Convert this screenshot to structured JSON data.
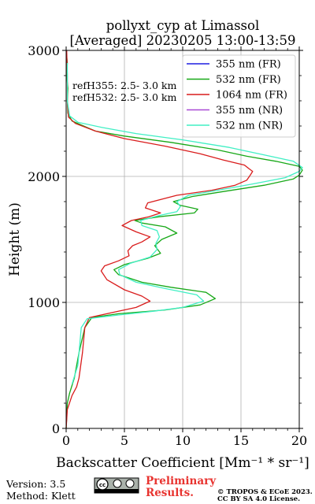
{
  "chart_data": {
    "type": "line",
    "title": "pollyxt_cyp at Limassol",
    "subtitle": "[Averaged] 20230205 13:00-13:59",
    "xlabel": "Backscatter Coefficient [Mm⁻¹ * sr⁻¹]",
    "ylabel": "Height (m)",
    "xlim": [
      0,
      20
    ],
    "ylim": [
      0,
      3000
    ],
    "xticks": [
      0,
      5,
      10,
      15,
      20
    ],
    "yticks": [
      0,
      1000,
      2000,
      3000
    ],
    "xtick_labels": [
      "0",
      "5",
      "10",
      "15",
      "20"
    ],
    "ytick_labels": [
      "0",
      "1000",
      "2000",
      "3000"
    ],
    "grid": true,
    "legend_position": "top-right",
    "annotations": [
      "refH355:  2.5- 3.0 km",
      "refH532:  2.5- 3.0 km"
    ],
    "series": [
      {
        "name": "355 nm (FR)",
        "color": "#1f1fe0",
        "points": []
      },
      {
        "name": "532 nm (FR)",
        "color": "#17a817",
        "points": [
          [
            0,
            0
          ],
          [
            0.1,
            200
          ],
          [
            0.3,
            280
          ],
          [
            0.7,
            400
          ],
          [
            1.1,
            600
          ],
          [
            1.6,
            800
          ],
          [
            2.2,
            880
          ],
          [
            4.5,
            910
          ],
          [
            8.5,
            940
          ],
          [
            11.5,
            980
          ],
          [
            12.8,
            1030
          ],
          [
            12,
            1080
          ],
          [
            9,
            1120
          ],
          [
            6.5,
            1160
          ],
          [
            4.5,
            1220
          ],
          [
            4.1,
            1260
          ],
          [
            5,
            1300
          ],
          [
            7,
            1350
          ],
          [
            8.1,
            1390
          ],
          [
            7.6,
            1450
          ],
          [
            8.2,
            1500
          ],
          [
            9.5,
            1550
          ],
          [
            8.5,
            1600
          ],
          [
            6.5,
            1630
          ],
          [
            5.9,
            1650
          ],
          [
            8,
            1680
          ],
          [
            11,
            1710
          ],
          [
            11.3,
            1740
          ],
          [
            9.8,
            1770
          ],
          [
            9.2,
            1800
          ],
          [
            10.8,
            1840
          ],
          [
            13.5,
            1880
          ],
          [
            17,
            1930
          ],
          [
            19.5,
            1980
          ],
          [
            20,
            2010
          ],
          [
            20.5,
            2050
          ],
          [
            20,
            2080
          ],
          [
            18,
            2120
          ],
          [
            15.5,
            2160
          ],
          [
            13,
            2210
          ],
          [
            9,
            2270
          ],
          [
            5,
            2320
          ],
          [
            2.5,
            2360
          ],
          [
            0.5,
            2440
          ],
          [
            0.15,
            2500
          ],
          [
            0.1,
            2600
          ],
          [
            0.15,
            2700
          ],
          [
            0.05,
            2800
          ],
          [
            0.1,
            2900
          ],
          [
            0,
            3000
          ]
        ]
      },
      {
        "name": "1064 nm (FR)",
        "color": "#d91c1c",
        "points": [
          [
            0,
            0
          ],
          [
            0.1,
            150
          ],
          [
            0.5,
            260
          ],
          [
            0.9,
            330
          ],
          [
            1.1,
            400
          ],
          [
            1.4,
            600
          ],
          [
            1.6,
            800
          ],
          [
            2,
            880
          ],
          [
            4,
            920
          ],
          [
            6,
            960
          ],
          [
            7.2,
            1010
          ],
          [
            6.5,
            1050
          ],
          [
            5,
            1100
          ],
          [
            3.5,
            1180
          ],
          [
            3,
            1250
          ],
          [
            3.3,
            1290
          ],
          [
            4.5,
            1330
          ],
          [
            5.4,
            1370
          ],
          [
            5.3,
            1410
          ],
          [
            5.7,
            1450
          ],
          [
            6.5,
            1480
          ],
          [
            7.2,
            1520
          ],
          [
            6,
            1560
          ],
          [
            4.8,
            1610
          ],
          [
            5.6,
            1650
          ],
          [
            7.1,
            1680
          ],
          [
            8.1,
            1710
          ],
          [
            6.8,
            1750
          ],
          [
            7,
            1790
          ],
          [
            9.5,
            1850
          ],
          [
            12.5,
            1890
          ],
          [
            14.5,
            1930
          ],
          [
            15.5,
            1970
          ],
          [
            15.8,
            2010
          ],
          [
            16,
            2040
          ],
          [
            15.7,
            2060
          ],
          [
            15.3,
            2090
          ],
          [
            13.5,
            2130
          ],
          [
            11.5,
            2180
          ],
          [
            8.5,
            2240
          ],
          [
            5,
            2300
          ],
          [
            2.5,
            2360
          ],
          [
            0.8,
            2420
          ],
          [
            0.2,
            2470
          ],
          [
            0.1,
            2600
          ],
          [
            0.1,
            2800
          ],
          [
            0.05,
            3000
          ]
        ]
      },
      {
        "name": "355 nm (NR)",
        "color": "#a94ad6",
        "points": []
      },
      {
        "name": "532 nm (NR)",
        "color": "#40efc4",
        "points": [
          [
            0.5,
            350
          ],
          [
            1,
            500
          ],
          [
            1.1,
            600
          ],
          [
            1.3,
            800
          ],
          [
            1.8,
            870
          ],
          [
            4.5,
            900
          ],
          [
            7.5,
            930
          ],
          [
            10,
            960
          ],
          [
            11.8,
            1010
          ],
          [
            11.2,
            1060
          ],
          [
            8.5,
            1110
          ],
          [
            6,
            1160
          ],
          [
            4.6,
            1220
          ],
          [
            4.5,
            1260
          ],
          [
            5.5,
            1310
          ],
          [
            7.2,
            1360
          ],
          [
            7.8,
            1420
          ],
          [
            7.7,
            1470
          ],
          [
            8,
            1520
          ],
          [
            7.8,
            1570
          ],
          [
            6.5,
            1610
          ],
          [
            6.4,
            1650
          ],
          [
            8,
            1690
          ],
          [
            9.5,
            1720
          ],
          [
            9.8,
            1760
          ],
          [
            9.5,
            1800
          ],
          [
            10.5,
            1850
          ],
          [
            13,
            1890
          ],
          [
            16,
            1940
          ],
          [
            18.8,
            1990
          ],
          [
            20,
            2040
          ],
          [
            20.5,
            2070
          ],
          [
            19.5,
            2120
          ],
          [
            17,
            2170
          ],
          [
            14,
            2230
          ],
          [
            10,
            2290
          ],
          [
            6,
            2340
          ],
          [
            3,
            2390
          ],
          [
            1,
            2430
          ],
          [
            0.3,
            2480
          ],
          [
            0.1,
            2600
          ],
          [
            0.1,
            2900
          ]
        ]
      }
    ]
  },
  "footer": {
    "version": "Version: 3.5",
    "method": "Method: Klett",
    "cc_logo": "cc-by-sa-license-icon",
    "preliminary_line1": "Preliminary",
    "preliminary_line2": "Results.",
    "copyright_line1": "© TROPOS & ECoE 2023.",
    "copyright_line2": "CC BY SA 4.0 License."
  }
}
